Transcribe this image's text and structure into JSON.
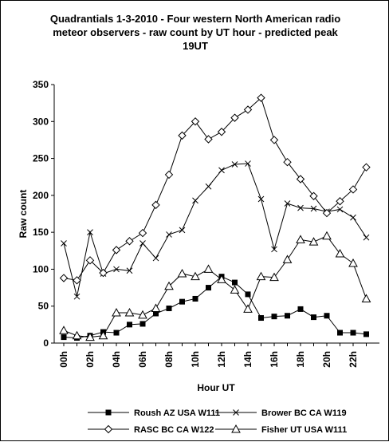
{
  "chart_data": {
    "type": "line",
    "title_lines": [
      "Quadrantials 1-3-2010 - Four western North American radio",
      "meteor observers - raw count by UT hour - predicted peak",
      "19UT"
    ],
    "xlabel": "Hour UT",
    "ylabel": "Raw count",
    "ylim": [
      0,
      350
    ],
    "yticks": [
      0,
      50,
      100,
      150,
      200,
      250,
      300,
      350
    ],
    "xtick_labels": [
      "00h",
      "02h",
      "04h",
      "06h",
      "08h",
      "10h",
      "12h",
      "14h",
      "16h",
      "18h",
      "20h",
      "22h"
    ],
    "x": [
      0,
      1,
      2,
      3,
      4,
      5,
      6,
      7,
      8,
      9,
      10,
      11,
      12,
      13,
      14,
      15,
      16,
      17,
      18,
      19,
      20,
      21,
      22,
      23
    ],
    "grid": false,
    "legend_position": "bottom",
    "series": [
      {
        "name": "Roush AZ  USA W111",
        "marker": "square-filled",
        "values": [
          8,
          7,
          10,
          15,
          14,
          25,
          26,
          40,
          47,
          56,
          60,
          75,
          90,
          82,
          66,
          34,
          36,
          37,
          46,
          35,
          37,
          14,
          14,
          12
        ]
      },
      {
        "name": "Brower BC CA W119",
        "marker": "x",
        "values": [
          135,
          63,
          150,
          94,
          100,
          98,
          135,
          115,
          147,
          153,
          193,
          212,
          234,
          242,
          243,
          195,
          127,
          189,
          183,
          182,
          178,
          181,
          170,
          143
        ]
      },
      {
        "name": "RASC BC CA W122",
        "marker": "diamond-open",
        "values": [
          88,
          85,
          112,
          95,
          126,
          138,
          149,
          187,
          228,
          281,
          300,
          276,
          286,
          305,
          316,
          332,
          275,
          245,
          222,
          199,
          176,
          192,
          208,
          238
        ]
      },
      {
        "name": "Fisher  UT USA W111",
        "marker": "triangle-open",
        "values": [
          17,
          10,
          8,
          10,
          41,
          41,
          38,
          47,
          77,
          94,
          90,
          100,
          86,
          72,
          46,
          90,
          89,
          113,
          140,
          137,
          145,
          121,
          108,
          60
        ]
      }
    ]
  }
}
